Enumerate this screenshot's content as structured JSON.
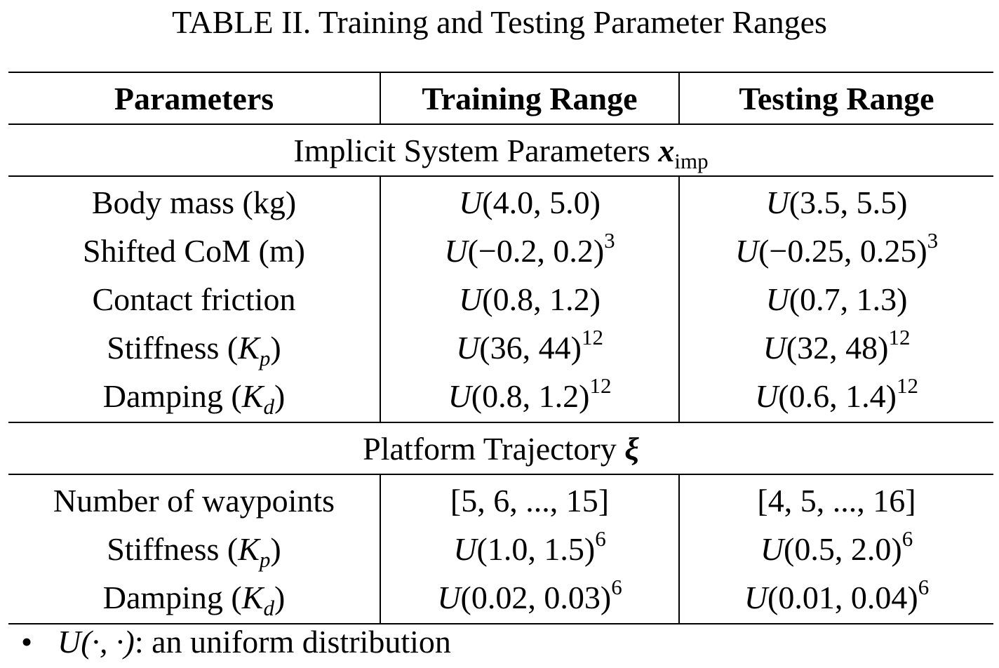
{
  "caption": "TABLE II. Training and Testing Parameter Ranges",
  "headers": [
    "Parameters",
    "Training Range",
    "Testing Range"
  ],
  "sections": [
    {
      "title": "Implicit System Parameters",
      "symbol": "x",
      "symbol_sub": "imp",
      "rows": [
        {
          "param": "Body mass (kg)",
          "train": "U(4.0, 5.0)",
          "train_sup": "",
          "test": "U(3.5, 5.5)",
          "test_sup": ""
        },
        {
          "param": "Shifted CoM (m)",
          "train": "U(−0.2, 0.2)",
          "train_sup": "3",
          "test": "U(−0.25, 0.25)",
          "test_sup": "3"
        },
        {
          "param": "Contact friction",
          "train": "U(0.8, 1.2)",
          "train_sup": "",
          "test": "U(0.7, 1.3)",
          "test_sup": ""
        },
        {
          "param": "Stiffness (Kp)",
          "train": "U(36, 44)",
          "train_sup": "12",
          "test": "U(32, 48)",
          "test_sup": "12"
        },
        {
          "param": "Damping (Kd)",
          "train": "U(0.8, 1.2)",
          "train_sup": "12",
          "test": "U(0.6, 1.4)",
          "test_sup": "12"
        }
      ]
    },
    {
      "title": "Platform Trajectory",
      "symbol": "ξ",
      "symbol_sub": "",
      "rows": [
        {
          "param": "Number of waypoints",
          "train": "[5, 6, ..., 15]",
          "train_sup": "",
          "test": "[4, 5, ..., 16]",
          "test_sup": ""
        },
        {
          "param": "Stiffness (Kp)",
          "train": "U(1.0, 1.5)",
          "train_sup": "6",
          "test": "U(0.5, 2.0)",
          "test_sup": "6"
        },
        {
          "param": "Damping (Kd)",
          "train": "U(0.02, 0.03)",
          "train_sup": "6",
          "test": "U(0.01, 0.04)",
          "test_sup": "6"
        }
      ]
    }
  ],
  "footnote": {
    "bullet": "•",
    "symbol": "U(·, ·)",
    "text": ": an uniform distribution"
  }
}
